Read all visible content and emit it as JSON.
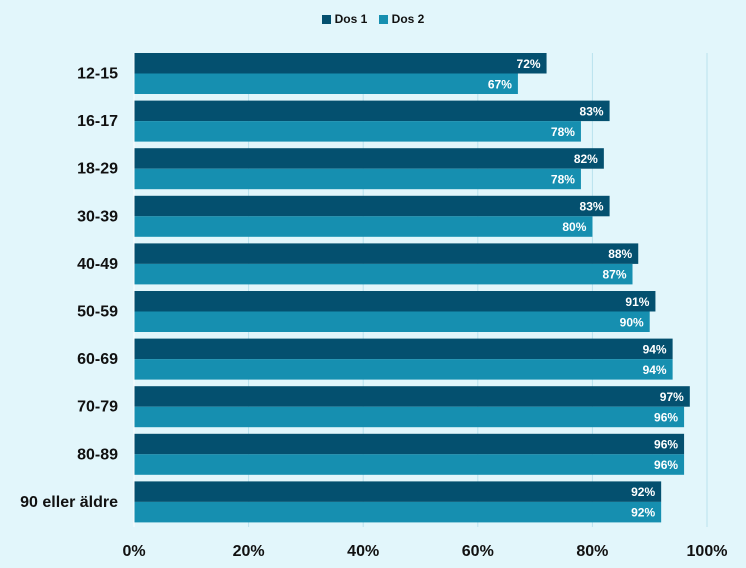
{
  "colors": {
    "background": "#e2f6fb",
    "series": [
      "#04506f",
      "#168fb0"
    ],
    "grid": "#b9e3ee",
    "label_text": "#ffffff",
    "axis_text": "#111111"
  },
  "legend_position": "top-center",
  "chart_data": {
    "type": "bar",
    "orientation": "horizontal",
    "categories": [
      "12-15",
      "16-17",
      "18-29",
      "30-39",
      "40-49",
      "50-59",
      "60-69",
      "70-79",
      "80-89",
      "90 eller äldre"
    ],
    "series": [
      {
        "name": "Dos 1",
        "values": [
          72,
          83,
          82,
          83,
          88,
          91,
          94,
          97,
          96,
          92
        ],
        "labels": [
          "72%",
          "83%",
          "82%",
          "83%",
          "88%",
          "91%",
          "94%",
          "97%",
          "96%",
          "92%"
        ]
      },
      {
        "name": "Dos 2",
        "values": [
          67,
          78,
          78,
          80,
          87,
          90,
          94,
          96,
          96,
          92
        ],
        "labels": [
          "67%",
          "78%",
          "78%",
          "80%",
          "87%",
          "90%",
          "94%",
          "96%",
          "96%",
          "92%"
        ]
      }
    ],
    "xlim": [
      0,
      100
    ],
    "xticks": [
      0,
      20,
      40,
      60,
      80,
      100
    ],
    "xtick_labels": [
      "0%",
      "20%",
      "40%",
      "60%",
      "80%",
      "100%"
    ],
    "grid": true,
    "title": "",
    "xlabel": "",
    "ylabel": ""
  }
}
